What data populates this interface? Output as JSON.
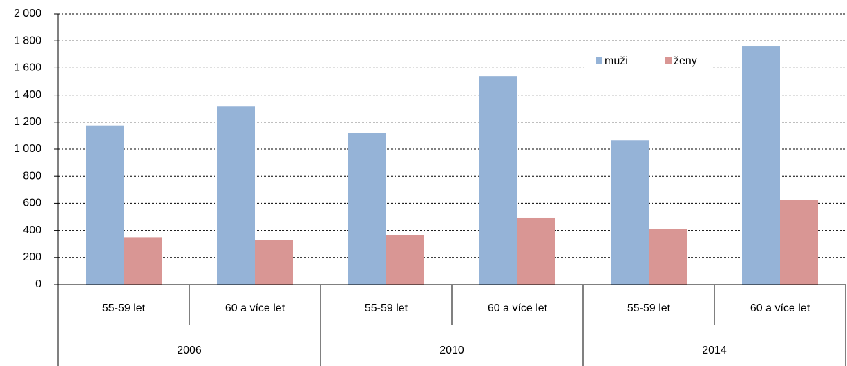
{
  "chart_data": {
    "type": "bar",
    "categories": [
      "55-59 let",
      "60 a více let",
      "55-59 let",
      "60 a více let",
      "55-59 let",
      "60 a více let"
    ],
    "category_groups": [
      "2006",
      "2010",
      "2014"
    ],
    "series": [
      {
        "name": "muži",
        "color": "#95b3d7",
        "values": [
          1175,
          1315,
          1120,
          1540,
          1065,
          1760
        ]
      },
      {
        "name": "ženy",
        "color": "#d99694",
        "values": [
          350,
          330,
          365,
          495,
          410,
          625
        ]
      }
    ],
    "ylim": [
      0,
      2000
    ],
    "yticks": [
      0,
      200,
      400,
      600,
      800,
      {
        "value": 1000,
        "label": "1 000"
      },
      {
        "value": 1200,
        "label": "1 200"
      },
      {
        "value": 1400,
        "label": "1 400"
      },
      {
        "value": 1600,
        "label": "1 600"
      },
      {
        "value": 1800,
        "label": "1 800"
      },
      {
        "value": 2000,
        "label": "2 000"
      }
    ],
    "grid": true,
    "legend": "top-right"
  }
}
